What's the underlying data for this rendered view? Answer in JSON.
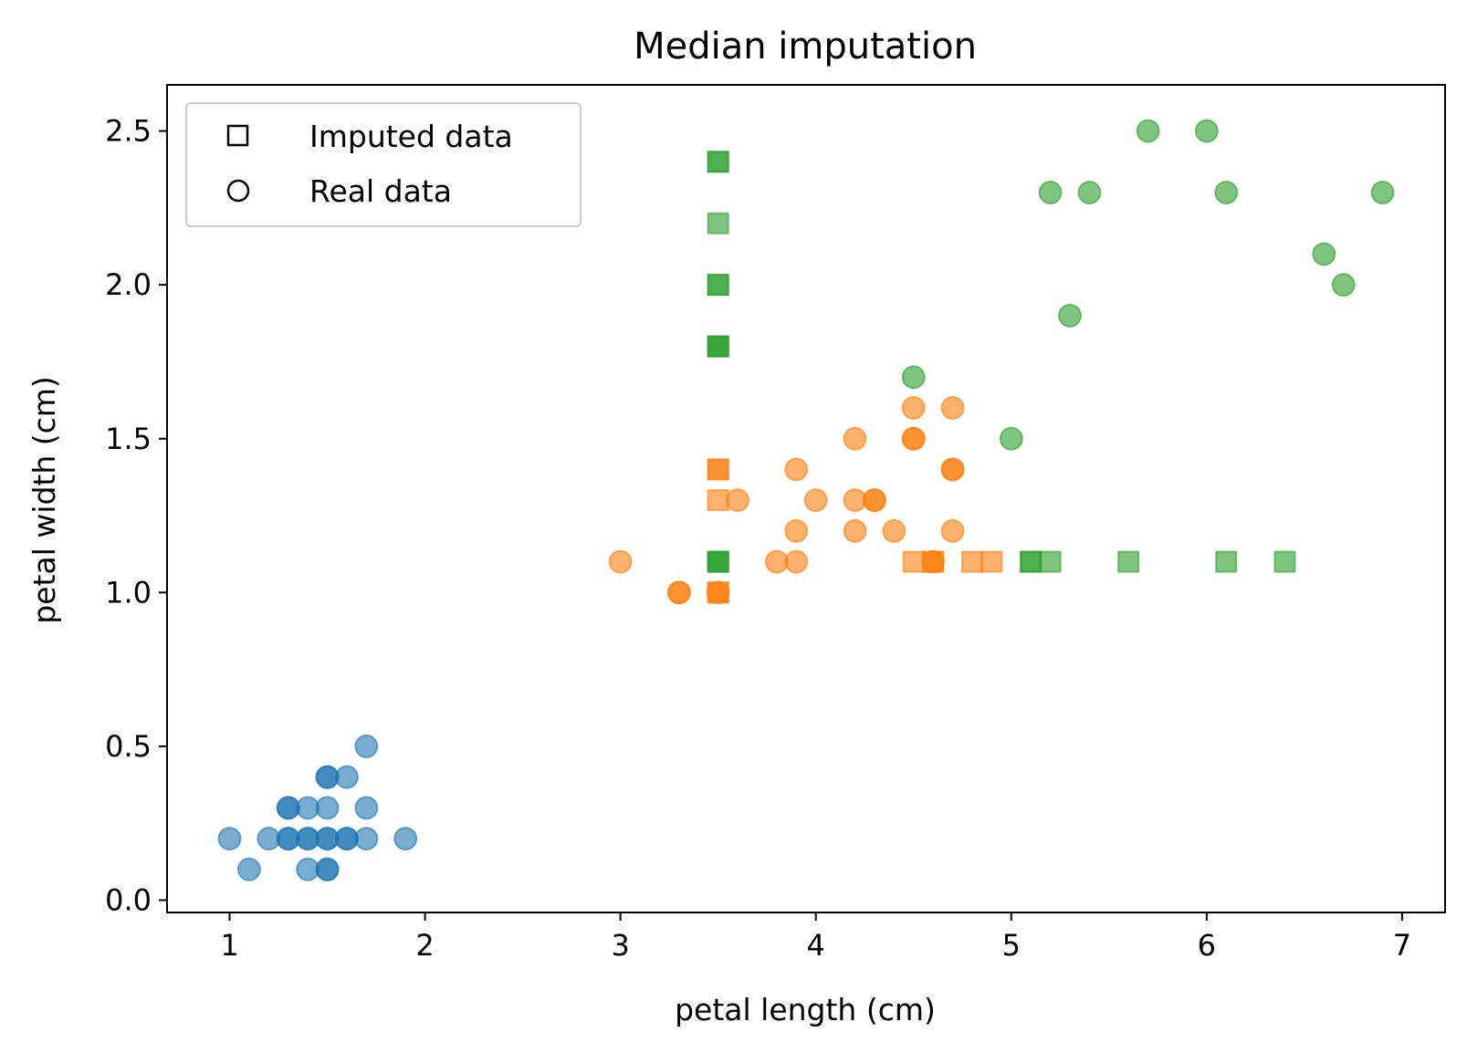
{
  "chart_data": {
    "type": "scatter",
    "title": "Median imputation",
    "xlabel": "petal length (cm)",
    "ylabel": "petal width (cm)",
    "xlim": [
      0.68,
      7.22
    ],
    "ylim": [
      -0.04,
      2.65
    ],
    "x_ticks": [
      "1",
      "2",
      "3",
      "4",
      "5",
      "6",
      "7"
    ],
    "x_tick_values": [
      1,
      2,
      3,
      4,
      5,
      6,
      7
    ],
    "y_ticks": [
      "0.0",
      "0.5",
      "1.0",
      "1.5",
      "2.0",
      "2.5"
    ],
    "y_tick_values": [
      0,
      0.5,
      1.0,
      1.5,
      2.0,
      2.5
    ],
    "grid": false,
    "legend": {
      "placement": "top-left",
      "entries": [
        {
          "label": "Imputed data",
          "marker": "square"
        },
        {
          "label": "Real data",
          "marker": "circle"
        }
      ]
    },
    "colors": {
      "blue": "#1f77b4",
      "orange": "#ff7f0e",
      "green": "#2ca02c"
    },
    "series": [
      {
        "color": "#1f77b4",
        "marker": "circle",
        "points": [
          [
            1.0,
            0.2
          ],
          [
            1.1,
            0.1
          ],
          [
            1.2,
            0.2
          ],
          [
            1.3,
            0.2
          ],
          [
            1.3,
            0.2
          ],
          [
            1.3,
            0.3
          ],
          [
            1.3,
            0.3
          ],
          [
            1.4,
            0.2
          ],
          [
            1.4,
            0.2
          ],
          [
            1.4,
            0.1
          ],
          [
            1.4,
            0.3
          ],
          [
            1.5,
            0.2
          ],
          [
            1.5,
            0.2
          ],
          [
            1.5,
            0.1
          ],
          [
            1.5,
            0.1
          ],
          [
            1.5,
            0.3
          ],
          [
            1.5,
            0.4
          ],
          [
            1.5,
            0.4
          ],
          [
            1.6,
            0.2
          ],
          [
            1.6,
            0.2
          ],
          [
            1.6,
            0.4
          ],
          [
            1.7,
            0.2
          ],
          [
            1.7,
            0.3
          ],
          [
            1.7,
            0.5
          ],
          [
            1.9,
            0.2
          ]
        ]
      },
      {
        "color": "#ff7f0e",
        "marker": "circle",
        "points": [
          [
            3.0,
            1.1
          ],
          [
            3.3,
            1.0
          ],
          [
            3.3,
            1.0
          ],
          [
            3.5,
            1.0
          ],
          [
            3.6,
            1.3
          ],
          [
            3.8,
            1.1
          ],
          [
            3.9,
            1.1
          ],
          [
            3.9,
            1.2
          ],
          [
            3.9,
            1.4
          ],
          [
            4.0,
            1.3
          ],
          [
            4.2,
            1.2
          ],
          [
            4.2,
            1.3
          ],
          [
            4.2,
            1.5
          ],
          [
            4.3,
            1.3
          ],
          [
            4.3,
            1.3
          ],
          [
            4.4,
            1.2
          ],
          [
            4.5,
            1.5
          ],
          [
            4.5,
            1.5
          ],
          [
            4.5,
            1.6
          ],
          [
            4.6,
            1.1
          ],
          [
            4.7,
            1.2
          ],
          [
            4.7,
            1.4
          ],
          [
            4.7,
            1.4
          ],
          [
            4.7,
            1.6
          ]
        ]
      },
      {
        "color": "#ff7f0e",
        "marker": "square",
        "points": [
          [
            3.5,
            1.0
          ],
          [
            3.5,
            1.0
          ],
          [
            3.5,
            1.3
          ],
          [
            3.5,
            1.4
          ],
          [
            3.5,
            1.4
          ],
          [
            4.5,
            1.1
          ],
          [
            4.6,
            1.1
          ],
          [
            4.6,
            1.1
          ],
          [
            4.8,
            1.1
          ],
          [
            4.9,
            1.1
          ]
        ]
      },
      {
        "color": "#2ca02c",
        "marker": "circle",
        "points": [
          [
            4.5,
            1.7
          ],
          [
            5.0,
            1.5
          ],
          [
            5.2,
            2.3
          ],
          [
            5.3,
            1.9
          ],
          [
            5.4,
            2.3
          ],
          [
            5.7,
            2.5
          ],
          [
            6.0,
            2.5
          ],
          [
            6.1,
            2.3
          ],
          [
            6.6,
            2.1
          ],
          [
            6.7,
            2.0
          ],
          [
            6.9,
            2.3
          ]
        ]
      },
      {
        "color": "#2ca02c",
        "marker": "square",
        "points": [
          [
            3.5,
            2.4
          ],
          [
            3.5,
            2.4
          ],
          [
            3.5,
            2.2
          ],
          [
            3.5,
            2.0
          ],
          [
            3.5,
            2.0
          ],
          [
            3.5,
            1.8
          ],
          [
            3.5,
            1.8
          ],
          [
            3.5,
            1.8
          ],
          [
            3.5,
            1.1
          ],
          [
            3.5,
            1.1
          ],
          [
            3.5,
            1.1
          ],
          [
            5.1,
            1.1
          ],
          [
            5.1,
            1.1
          ],
          [
            5.2,
            1.1
          ],
          [
            5.6,
            1.1
          ],
          [
            6.1,
            1.1
          ],
          [
            6.4,
            1.1
          ]
        ]
      }
    ]
  }
}
